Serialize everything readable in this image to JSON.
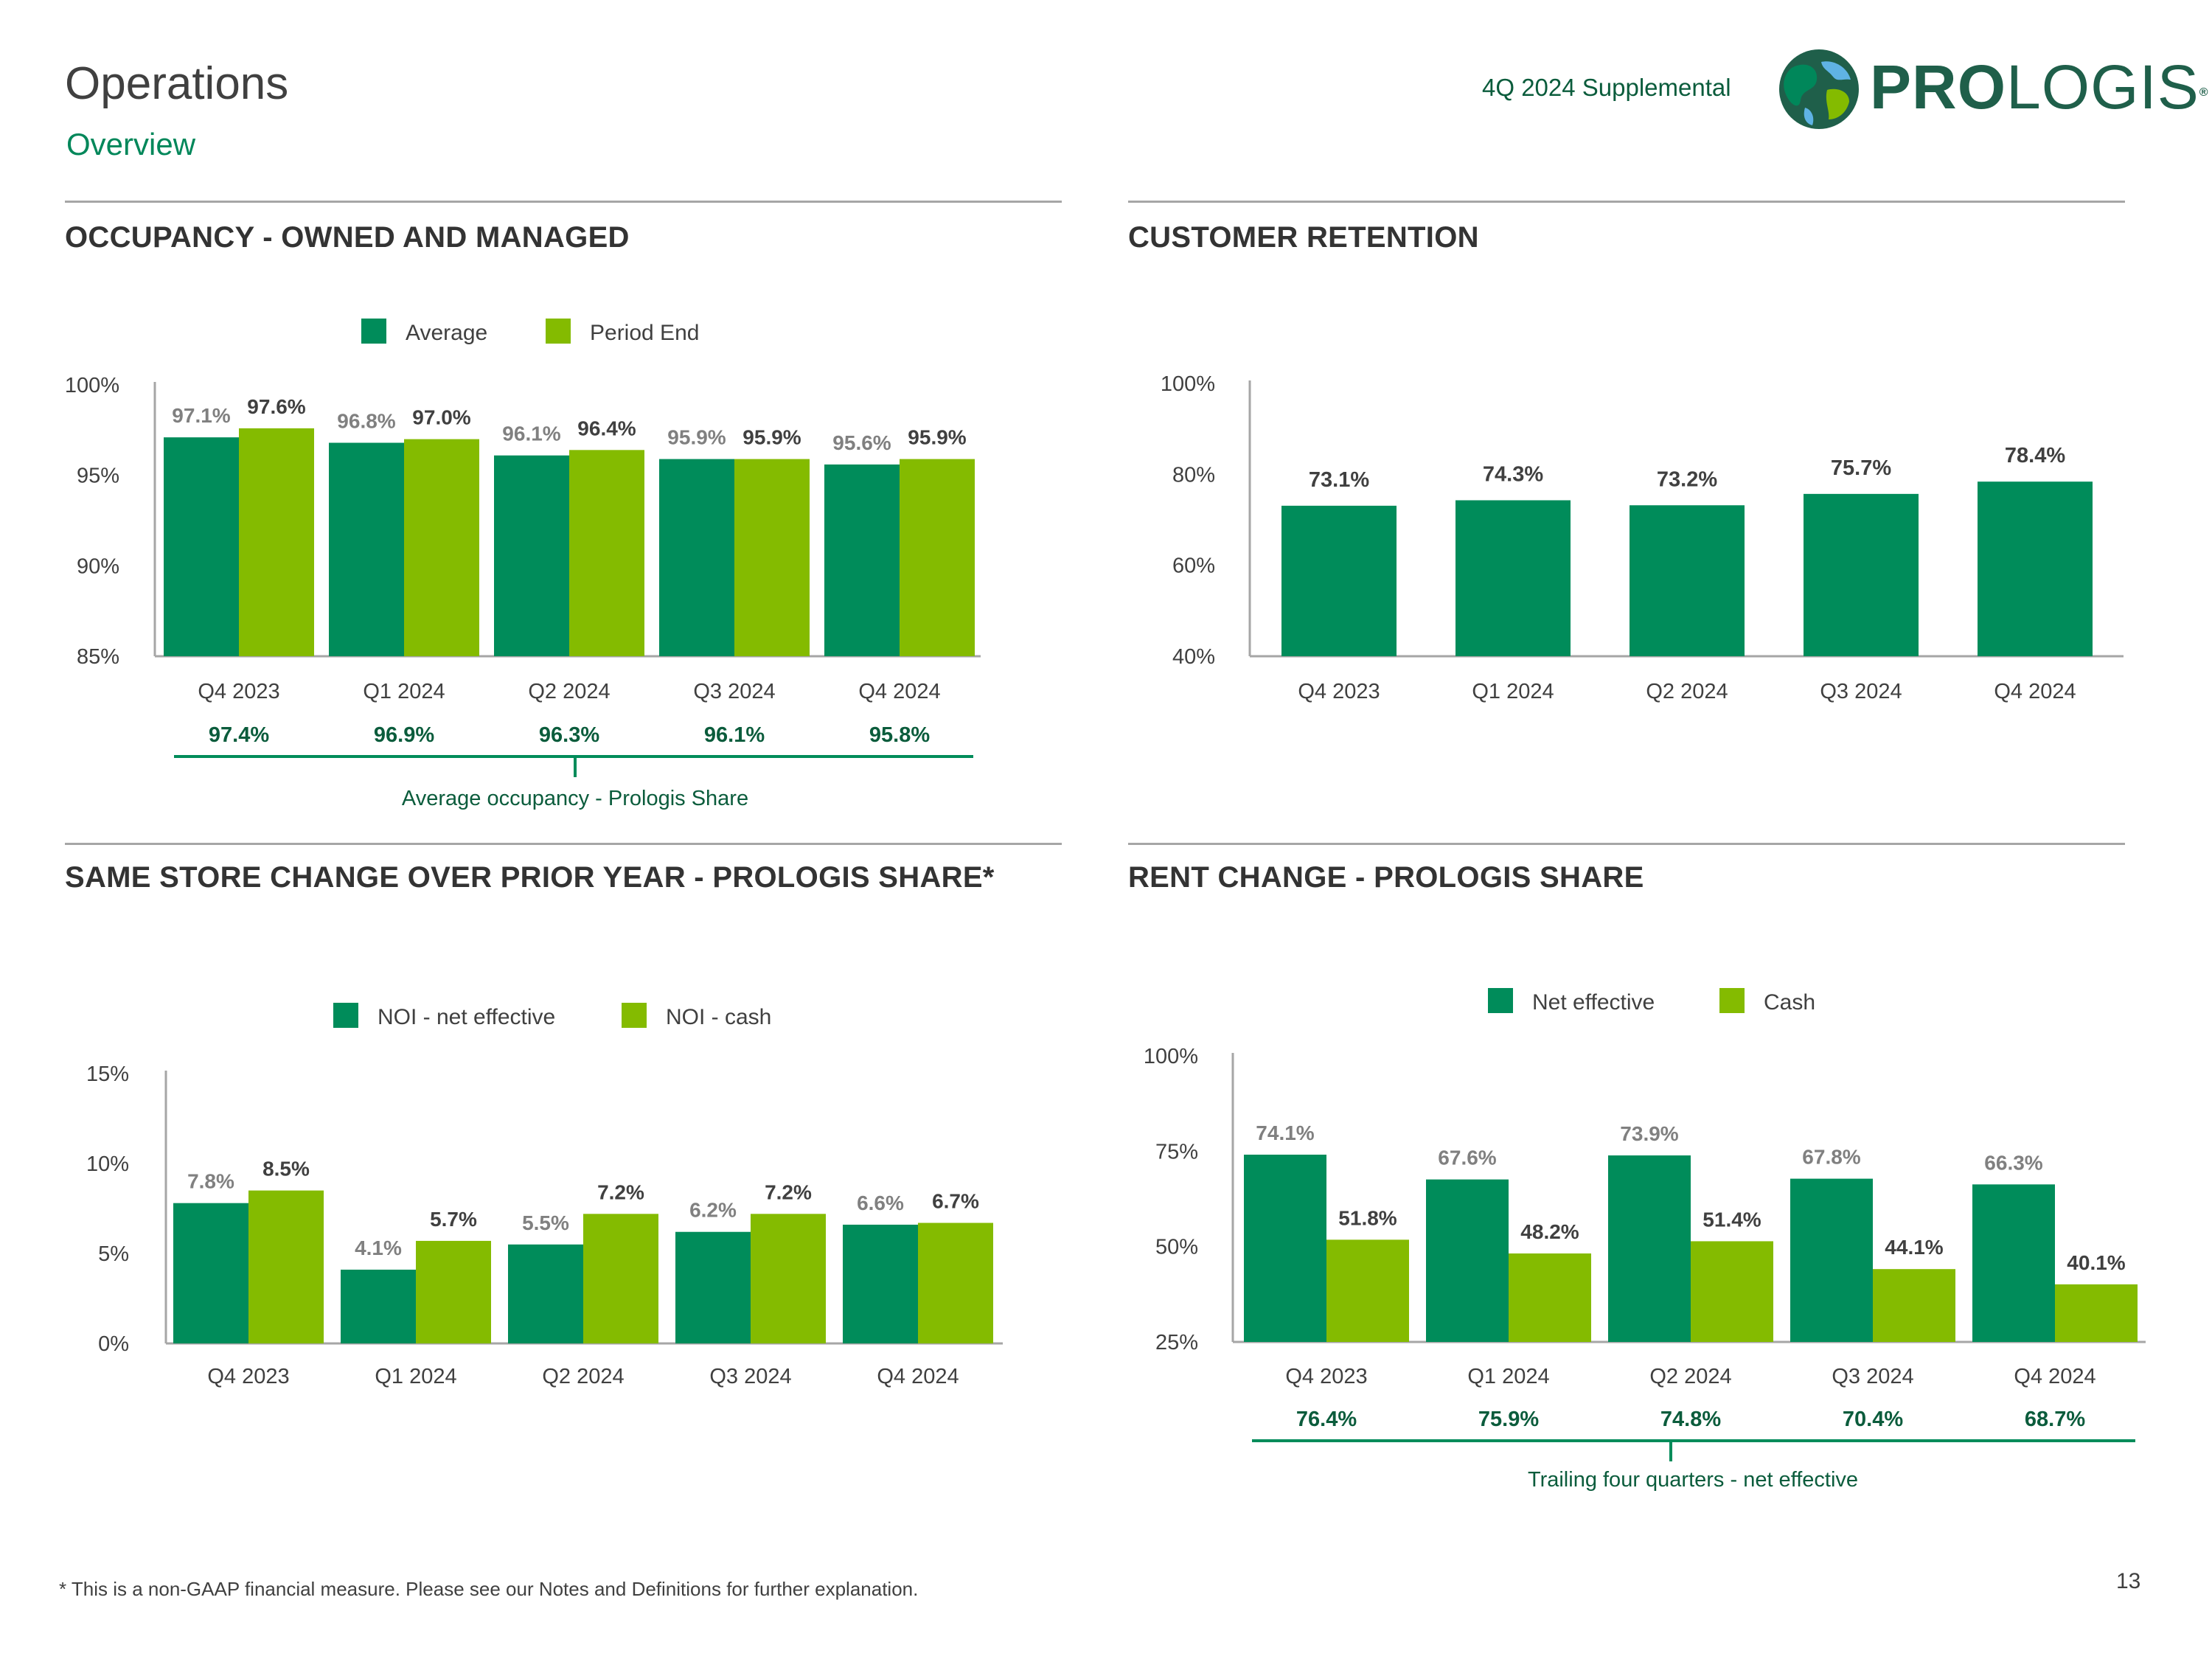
{
  "header": {
    "title": "Operations",
    "subtitle": "Overview",
    "supplemental": "4Q 2024 Supplemental",
    "logo_text_bold": "PRO",
    "logo_text_light": "LOGIS",
    "logo_registered": "®"
  },
  "colors": {
    "dark_green": "#008c5a",
    "light_green": "#84bb00",
    "divider": "#a6a6a6",
    "muted_label": "#808080",
    "summary_text": "#0b5c3c"
  },
  "chart_data": [
    {
      "id": "occupancy",
      "type": "bar",
      "title": "OCCUPANCY - OWNED AND MANAGED",
      "categories": [
        "Q4 2023",
        "Q1 2024",
        "Q2 2024",
        "Q3 2024",
        "Q4 2024"
      ],
      "series": [
        {
          "name": "Average",
          "values": [
            97.1,
            96.8,
            96.1,
            95.9,
            95.6
          ],
          "labels": [
            "97.1%",
            "96.8%",
            "96.1%",
            "95.9%",
            "95.6%"
          ]
        },
        {
          "name": "Period End",
          "values": [
            97.6,
            97.0,
            96.4,
            95.9,
            95.9
          ],
          "labels": [
            "97.6%",
            "97.0%",
            "96.4%",
            "95.9%",
            "95.9%"
          ]
        }
      ],
      "ylim": [
        85,
        100
      ],
      "yticks": [
        "100%",
        "95%",
        "90%",
        "85%"
      ],
      "ytick_values": [
        100,
        95,
        90,
        85
      ],
      "summary": {
        "values": [
          "97.4%",
          "96.9%",
          "96.3%",
          "96.1%",
          "95.8%"
        ],
        "label": "Average occupancy - Prologis Share"
      }
    },
    {
      "id": "retention",
      "type": "bar",
      "title": "CUSTOMER RETENTION",
      "categories": [
        "Q4 2023",
        "Q1 2024",
        "Q2 2024",
        "Q3 2024",
        "Q4 2024"
      ],
      "series": [
        {
          "name": "Retention",
          "values": [
            73.1,
            74.3,
            73.2,
            75.7,
            78.4
          ],
          "labels": [
            "73.1%",
            "74.3%",
            "73.2%",
            "75.7%",
            "78.4%"
          ]
        }
      ],
      "ylim": [
        40,
        100
      ],
      "yticks": [
        "100%",
        "80%",
        "60%",
        "40%"
      ],
      "ytick_values": [
        100,
        80,
        60,
        40
      ]
    },
    {
      "id": "samestore",
      "type": "bar",
      "title": "SAME STORE CHANGE OVER PRIOR YEAR - PROLOGIS SHARE*",
      "categories": [
        "Q4 2023",
        "Q1 2024",
        "Q2 2024",
        "Q3 2024",
        "Q4 2024"
      ],
      "series": [
        {
          "name": "NOI - net effective",
          "values": [
            7.8,
            4.1,
            5.5,
            6.2,
            6.6
          ],
          "labels": [
            "7.8%",
            "4.1%",
            "5.5%",
            "6.2%",
            "6.6%"
          ]
        },
        {
          "name": "NOI - cash",
          "values": [
            8.5,
            5.7,
            7.2,
            7.2,
            6.7
          ],
          "labels": [
            "8.5%",
            "5.7%",
            "7.2%",
            "7.2%",
            "6.7%"
          ]
        }
      ],
      "ylim": [
        0,
        15
      ],
      "yticks": [
        "15%",
        "10%",
        "5%",
        "0%"
      ],
      "ytick_values": [
        15,
        10,
        5,
        0
      ]
    },
    {
      "id": "rentchange",
      "type": "bar",
      "title": "RENT CHANGE - PROLOGIS SHARE",
      "categories": [
        "Q4 2023",
        "Q1 2024",
        "Q2 2024",
        "Q3 2024",
        "Q4 2024"
      ],
      "series": [
        {
          "name": "Net effective",
          "values": [
            74.1,
            67.6,
            73.9,
            67.8,
            66.3
          ],
          "labels": [
            "74.1%",
            "67.6%",
            "73.9%",
            "67.8%",
            "66.3%"
          ]
        },
        {
          "name": "Cash",
          "values": [
            51.8,
            48.2,
            51.4,
            44.1,
            40.1
          ],
          "labels": [
            "51.8%",
            "48.2%",
            "51.4%",
            "44.1%",
            "40.1%"
          ]
        }
      ],
      "ylim": [
        25,
        100
      ],
      "yticks": [
        "100%",
        "75%",
        "50%",
        "25%"
      ],
      "ytick_values": [
        100,
        75,
        50,
        25
      ],
      "summary": {
        "values": [
          "76.4%",
          "75.9%",
          "74.8%",
          "70.4%",
          "68.7%"
        ],
        "label": "Trailing four quarters - net effective"
      }
    }
  ],
  "footer": {
    "footnote": "* This is a non-GAAP financial measure. Please see our Notes and Definitions for further explanation.",
    "page_number": "13"
  }
}
